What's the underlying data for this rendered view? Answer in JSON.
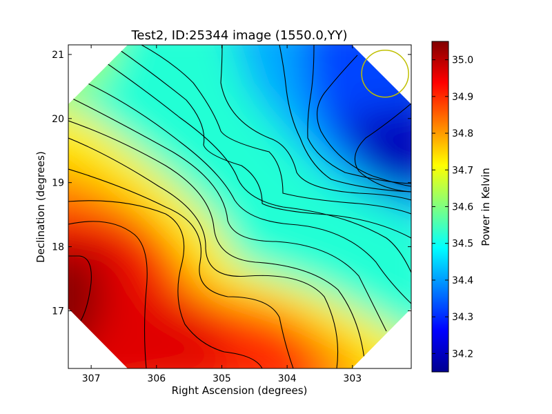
{
  "chart_data": {
    "type": "heatmap",
    "title": "Test2, ID:25344 image (1550.0,YY)",
    "xlabel": "Right Ascension (degrees)",
    "ylabel": "Declination (degrees)",
    "xlim": [
      307.35,
      302.1
    ],
    "ylim": [
      16.1,
      21.15
    ],
    "xticks": [
      {
        "value": 307,
        "label": "307"
      },
      {
        "value": 306,
        "label": "306"
      },
      {
        "value": 305,
        "label": "305"
      },
      {
        "value": 304,
        "label": "304"
      },
      {
        "value": 303,
        "label": "303"
      }
    ],
    "yticks": [
      {
        "value": 17,
        "label": "17"
      },
      {
        "value": 18,
        "label": "18"
      },
      {
        "value": 19,
        "label": "19"
      },
      {
        "value": 20,
        "label": "20"
      },
      {
        "value": 21,
        "label": "21"
      }
    ],
    "colorbar": {
      "label": "Power in Kelvin",
      "range": [
        34.15,
        35.05
      ],
      "ticks": [
        {
          "value": 35.0,
          "label": "35.0"
        },
        {
          "value": 34.9,
          "label": "34.9"
        },
        {
          "value": 34.8,
          "label": "34.8"
        },
        {
          "value": 34.7,
          "label": "34.7"
        },
        {
          "value": 34.6,
          "label": "34.6"
        },
        {
          "value": 34.5,
          "label": "34.5"
        },
        {
          "value": 34.4,
          "label": "34.4"
        },
        {
          "value": 34.3,
          "label": "34.3"
        },
        {
          "value": 34.2,
          "label": "34.2"
        }
      ],
      "colormap": "jet"
    },
    "marker": {
      "shape": "circle",
      "ra": 302.5,
      "dec": 20.7,
      "color": "#bfbf00"
    },
    "max_region": {
      "ra": 307.0,
      "dec": 17.5,
      "value": 35.05
    },
    "min_region": {
      "ra": 302.3,
      "dec": 19.4,
      "value": 34.15
    },
    "contour_count": 17
  }
}
